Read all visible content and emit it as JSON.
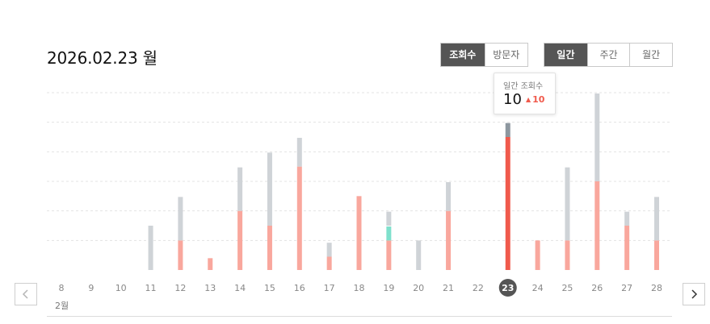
{
  "header": {
    "date": "2026.02.23 월"
  },
  "metric_tabs": [
    {
      "label": "조회수",
      "active": true
    },
    {
      "label": "방문자",
      "active": false
    }
  ],
  "period_tabs": [
    {
      "label": "일간",
      "active": true
    },
    {
      "label": "주간",
      "active": false
    },
    {
      "label": "월간",
      "active": false
    }
  ],
  "tooltip": {
    "label": "일간 조회수",
    "value": "10",
    "delta": "10",
    "delta_icon": "up-triangle-icon"
  },
  "month_label": "2월",
  "selected_day": "23",
  "colors": {
    "bar_main": "#f9a79d",
    "bar_selected": "#f05a4c",
    "bar_extra": "#cfd3d7",
    "bar_selected_extra": "#8d979f",
    "bar_teal": "#7fe0cc",
    "selected_circle": "#555555",
    "gridline": "#e3e3e3"
  },
  "chart_data": {
    "type": "bar",
    "stacked": true,
    "categories": [
      "8",
      "9",
      "10",
      "11",
      "12",
      "13",
      "14",
      "15",
      "16",
      "17",
      "18",
      "19",
      "20",
      "21",
      "22",
      "23",
      "24",
      "25",
      "26",
      "27",
      "28"
    ],
    "series": [
      {
        "values": [
          0,
          0,
          0,
          0,
          2,
          0.8,
          4,
          3,
          7,
          0.9,
          5,
          2,
          0,
          4,
          0,
          9,
          2,
          2,
          6,
          3,
          2
        ]
      },
      {
        "values": [
          0,
          0,
          0,
          0,
          0,
          0,
          0,
          0,
          0,
          0,
          0,
          1,
          0,
          0,
          0,
          0,
          0,
          0,
          0,
          0,
          0
        ]
      },
      {
        "values": [
          0,
          0,
          0,
          3,
          3,
          0,
          3,
          5,
          2,
          1,
          0,
          1,
          2,
          2,
          0,
          1,
          0,
          5,
          6,
          1,
          3
        ]
      }
    ],
    "ylim": [
      0,
      12
    ],
    "grid": true
  }
}
